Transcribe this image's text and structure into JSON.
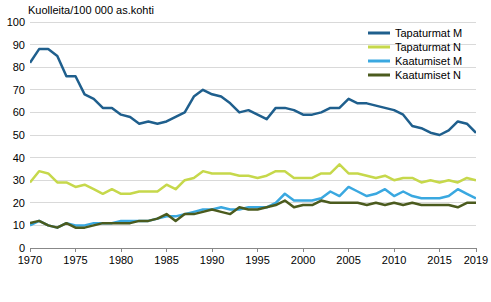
{
  "chart_data": {
    "type": "line",
    "title": "Kuolleita/100 000 as.kohti",
    "x": [
      1970,
      1971,
      1972,
      1973,
      1974,
      1975,
      1976,
      1977,
      1978,
      1979,
      1980,
      1981,
      1982,
      1983,
      1984,
      1985,
      1986,
      1987,
      1988,
      1989,
      1990,
      1991,
      1992,
      1993,
      1994,
      1995,
      1996,
      1997,
      1998,
      1999,
      2000,
      2001,
      2002,
      2003,
      2004,
      2005,
      2006,
      2007,
      2008,
      2009,
      2010,
      2011,
      2012,
      2013,
      2014,
      2015,
      2016,
      2017,
      2018,
      2019
    ],
    "series": [
      {
        "name": "Tapaturmat M",
        "color": "#1f5f8d",
        "values": [
          82,
          88,
          88,
          85,
          76,
          76,
          68,
          66,
          62,
          62,
          59,
          58,
          55,
          56,
          55,
          56,
          58,
          60,
          67,
          70,
          68,
          67,
          64,
          60,
          61,
          59,
          57,
          62,
          62,
          61,
          59,
          59,
          60,
          62,
          62,
          66,
          64,
          64,
          63,
          62,
          61,
          59,
          54,
          53,
          51,
          50,
          52,
          56,
          55,
          51
        ]
      },
      {
        "name": "Tapaturmat N",
        "color": "#c6d84b",
        "values": [
          29,
          34,
          33,
          29,
          29,
          27,
          28,
          26,
          24,
          26,
          24,
          24,
          25,
          25,
          25,
          28,
          26,
          30,
          31,
          34,
          33,
          33,
          33,
          32,
          32,
          31,
          32,
          34,
          34,
          31,
          31,
          31,
          33,
          33,
          37,
          33,
          33,
          32,
          31,
          32,
          30,
          31,
          31,
          29,
          30,
          29,
          30,
          29,
          31,
          30
        ]
      },
      {
        "name": "Kaatumiset M",
        "color": "#3aa8e0",
        "values": [
          10,
          12,
          10,
          9,
          11,
          10,
          10,
          11,
          11,
          11,
          12,
          12,
          12,
          12,
          13,
          14,
          14,
          15,
          16,
          17,
          17,
          18,
          17,
          17,
          18,
          18,
          18,
          20,
          24,
          21,
          21,
          21,
          22,
          25,
          23,
          27,
          25,
          23,
          24,
          26,
          23,
          25,
          23,
          22,
          22,
          22,
          23,
          26,
          24,
          22
        ]
      },
      {
        "name": "Kaatumiset N",
        "color": "#4b5b1e",
        "values": [
          11,
          12,
          10,
          9,
          11,
          9,
          9,
          10,
          11,
          11,
          11,
          11,
          12,
          12,
          13,
          15,
          12,
          15,
          15,
          16,
          17,
          16,
          15,
          18,
          17,
          17,
          18,
          19,
          21,
          18,
          19,
          19,
          21,
          20,
          20,
          20,
          20,
          19,
          20,
          19,
          20,
          19,
          20,
          19,
          19,
          19,
          19,
          18,
          20,
          20
        ]
      }
    ],
    "xlim": [
      1970,
      2019
    ],
    "xticks": [
      1970,
      1975,
      1980,
      1985,
      1990,
      1995,
      2000,
      2005,
      2010,
      2015,
      2019
    ],
    "ylim": [
      0,
      100
    ],
    "yticks": [
      0,
      10,
      20,
      30,
      40,
      50,
      60,
      70,
      80,
      90,
      100
    ],
    "grid": true,
    "legend": "upper right"
  }
}
